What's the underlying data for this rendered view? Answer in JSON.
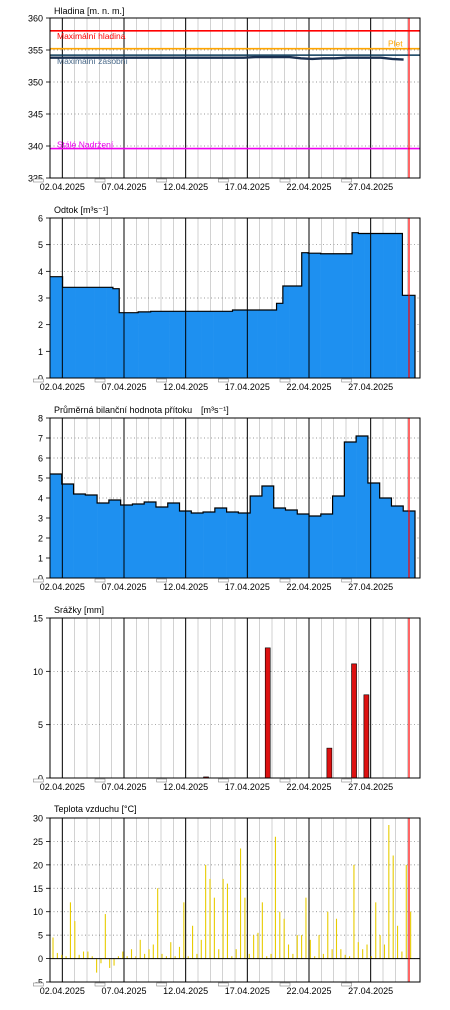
{
  "colors": {
    "bar_fill": "#1e90f0",
    "bar_outline": "#000000",
    "precip_fill": "#dd1111",
    "temp_line": "#e8cc00",
    "max_level": "#ff0000",
    "flood": "#ffa500",
    "min_level": "#0a3a5a",
    "dead_level": "#ee00ee",
    "current_line": "#ff0000",
    "water_level": "#1a3050"
  },
  "chart_data": [
    {
      "id": "hladina",
      "type": "line",
      "title": "Hladina [m. n. m.]",
      "ylim": [
        335,
        360
      ],
      "yticks": [
        335,
        340,
        345,
        350,
        355,
        360
      ],
      "xtick_labels": [
        "02.04.2025",
        "07.04.2025",
        "12.04.2025",
        "17.04.2025",
        "22.04.2025",
        "27.04.2025"
      ],
      "series": [
        {
          "values": [
            353.8,
            353.8,
            353.8,
            353.8,
            353.8,
            353.8,
            353.8,
            353.8,
            353.8,
            353.8,
            353.8,
            353.8,
            353.8,
            353.8,
            353.8,
            353.8,
            353.8,
            353.8,
            353.9,
            353.9,
            353.9,
            353.9,
            353.7,
            353.6,
            353.7,
            353.7,
            353.8,
            353.8,
            353.8,
            353.8,
            353.6,
            353.5
          ]
        }
      ],
      "reference_lines": [
        {
          "label": "Maximální hladina",
          "value": 358.0,
          "color_key": "max_level"
        },
        {
          "label": "Plet",
          "value": 355.2,
          "color_key": "flood"
        },
        {
          "label": "Maximální zásobní",
          "value": 354.2,
          "color_key": "min_level"
        },
        {
          "label": "Stálé Nadržení",
          "value": 339.6,
          "color_key": "dead_level"
        }
      ]
    },
    {
      "id": "odtok",
      "type": "area",
      "title": "Odtok [m³s⁻¹]",
      "ylim": [
        0,
        6
      ],
      "yticks": [
        0,
        1,
        2,
        3,
        4,
        5,
        6
      ],
      "xtick_labels": [
        "02.04.2025",
        "07.04.2025",
        "12.04.2025",
        "17.04.2025",
        "22.04.2025",
        "27.04.2025"
      ],
      "values": [
        3.8,
        3.8,
        3.4,
        3.4,
        3.4,
        3.4,
        3.4,
        3.4,
        3.4,
        3.4,
        3.35,
        2.45,
        2.45,
        2.45,
        2.48,
        2.48,
        2.5,
        2.5,
        2.5,
        2.5,
        2.5,
        2.5,
        2.5,
        2.5,
        2.5,
        2.5,
        2.5,
        2.5,
        2.5,
        2.55,
        2.55,
        2.55,
        2.55,
        2.55,
        2.55,
        2.55,
        2.8,
        3.45,
        3.45,
        3.45,
        4.7,
        4.68,
        4.68,
        4.66,
        4.66,
        4.66,
        4.66,
        4.66,
        5.45,
        5.42,
        5.42,
        5.42,
        5.42,
        5.42,
        5.42,
        5.42,
        3.1,
        3.1
      ]
    },
    {
      "id": "prumerna",
      "type": "area",
      "title": "Průměrná bilanční hodnota přítoku",
      "unit": "[m³s⁻¹]",
      "ylim": [
        0,
        8
      ],
      "yticks": [
        0,
        1,
        2,
        3,
        4,
        5,
        6,
        7,
        8
      ],
      "xtick_labels": [
        "02.04.2025",
        "07.04.2025",
        "12.04.2025",
        "17.04.2025",
        "22.04.2025",
        "27.04.2025"
      ],
      "values": [
        5.2,
        4.7,
        4.2,
        4.15,
        3.75,
        3.9,
        3.65,
        3.7,
        3.8,
        3.55,
        3.75,
        3.35,
        3.25,
        3.3,
        3.5,
        3.3,
        3.25,
        4.1,
        4.6,
        3.5,
        3.4,
        3.2,
        3.1,
        3.2,
        4.1,
        6.8,
        7.1,
        4.75,
        4.0,
        3.6,
        3.35
      ]
    },
    {
      "id": "srazky",
      "type": "bar",
      "title": "Srážky [mm]",
      "ylim": [
        0,
        15
      ],
      "yticks": [
        0,
        5,
        10,
        15
      ],
      "xtick_labels": [
        "02.04.2025",
        "07.04.2025",
        "12.04.2025",
        "17.04.2025",
        "22.04.2025",
        "27.04.2025"
      ],
      "values": [
        0,
        0,
        0,
        0,
        0,
        0,
        0,
        0,
        0,
        0,
        0,
        0,
        0.1,
        0,
        0,
        0,
        0,
        12.2,
        0,
        0,
        0,
        0,
        2.8,
        0,
        10.7,
        7.8,
        0,
        0,
        0,
        0
      ]
    },
    {
      "id": "teplota",
      "type": "bar",
      "title": "Teplota vzduchu [°C]",
      "ylim": [
        -5,
        30
      ],
      "yticks": [
        -5,
        0,
        5,
        10,
        15,
        20,
        25,
        30
      ],
      "xtick_labels": [
        "02.04.2025",
        "07.04.2025",
        "12.04.2025",
        "17.04.2025",
        "22.04.2025",
        "27.04.2025"
      ],
      "values": [
        4.5,
        1.2,
        0.8,
        0.5,
        12.0,
        8.0,
        0.8,
        1.5,
        1.5,
        0.5,
        -3.0,
        -1.0,
        9.5,
        -2.0,
        -1.5,
        0.5,
        1.5,
        0.5,
        2.0,
        0.5,
        4.0,
        1.0,
        2.0,
        3.0,
        15.0,
        1.0,
        0.5,
        3.5,
        0.5,
        2.5,
        12.0,
        0.5,
        7.0,
        1.0,
        4.0,
        20.0,
        17.0,
        13.0,
        2.0,
        17.0,
        16.0,
        0.5,
        2.0,
        23.5,
        13.0,
        1.0,
        5.0,
        5.5,
        12.0,
        0.5,
        1.0,
        26.0,
        10.0,
        8.5,
        3.0,
        1.0,
        5.0,
        5.0,
        13.0,
        4.0,
        0.5,
        5.0,
        1.0,
        10.0,
        2.0,
        8.5,
        2.0,
        0.8,
        0.5,
        20.0,
        3.5,
        2.0,
        3.0,
        0.5,
        12.0,
        5.0,
        3.0,
        28.5,
        22.0,
        7.0,
        1.5,
        20.0,
        10.0
      ]
    }
  ]
}
